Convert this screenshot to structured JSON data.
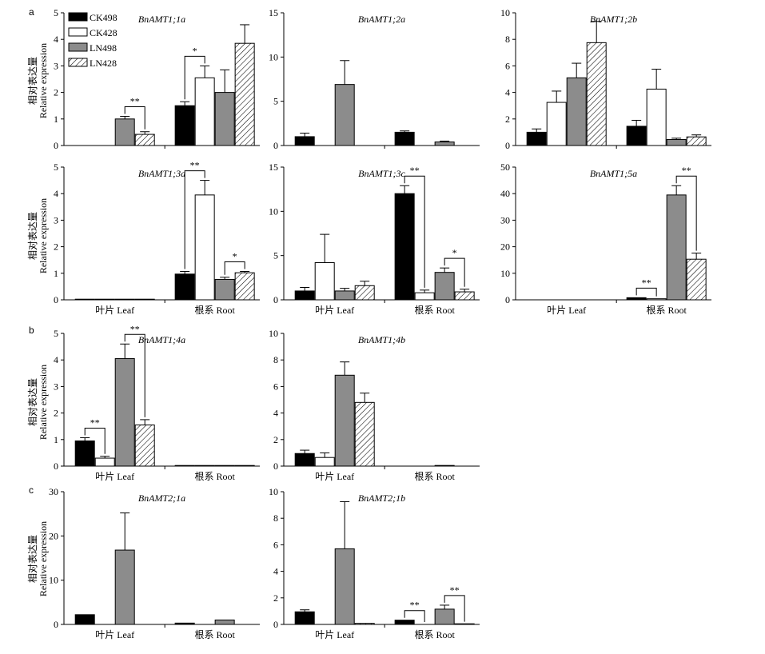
{
  "panel_letters": [
    "a",
    "b",
    "c"
  ],
  "y_label_cn": "相对表达量",
  "y_label_en": "Relative expression",
  "legend": [
    {
      "label": "CK498",
      "fill": "black"
    },
    {
      "label": "CK428",
      "fill": "white"
    },
    {
      "label": "LN498",
      "fill": "gray"
    },
    {
      "label": "LN428",
      "fill": "hatch"
    }
  ],
  "colors": {
    "black": "#000000",
    "white": "#ffffff",
    "gray": "#8c8c8c"
  },
  "chart_data": [
    {
      "type": "bar",
      "title": "BnAMT1;1a",
      "categories": [
        "叶片 Leaf",
        "根系 Root"
      ],
      "show_xticklabels": false,
      "ylim": [
        0,
        5
      ],
      "yticks": [
        0,
        1,
        2,
        3,
        4,
        5
      ],
      "series": [
        {
          "name": "CK498",
          "values": [
            null,
            1.5
          ],
          "errors": [
            null,
            0.15
          ]
        },
        {
          "name": "CK428",
          "values": [
            null,
            2.55
          ],
          "errors": [
            null,
            0.45
          ]
        },
        {
          "name": "LN498",
          "values": [
            1.0,
            2.0
          ],
          "errors": [
            0.1,
            0.85
          ]
        },
        {
          "name": "LN428",
          "values": [
            0.42,
            3.85
          ],
          "errors": [
            0.1,
            0.7
          ]
        }
      ],
      "sig": [
        {
          "label": "**",
          "group": 0,
          "bars": [
            2,
            3
          ]
        },
        {
          "label": "*",
          "group": 1,
          "bars": [
            0,
            1
          ]
        }
      ]
    },
    {
      "type": "bar",
      "title": "BnAMT1;2a",
      "categories": [
        "叶片 Leaf",
        "根系 Root"
      ],
      "show_xticklabels": false,
      "ylim": [
        0,
        15
      ],
      "yticks": [
        0,
        5,
        10,
        15
      ],
      "series": [
        {
          "name": "CK498",
          "values": [
            1.0,
            1.5
          ],
          "errors": [
            0.4,
            0.15
          ]
        },
        {
          "name": "CK428",
          "values": [
            0,
            0
          ],
          "errors": [
            null,
            null
          ]
        },
        {
          "name": "LN498",
          "values": [
            6.9,
            0.4
          ],
          "errors": [
            2.7,
            0.1
          ]
        },
        {
          "name": "LN428",
          "values": [
            0,
            0
          ],
          "errors": [
            null,
            null
          ]
        }
      ],
      "sig": []
    },
    {
      "type": "bar",
      "title": "BnAMT1;2b",
      "categories": [
        "叶片 Leaf",
        "根系 Root"
      ],
      "show_xticklabels": false,
      "ylim": [
        0,
        10
      ],
      "yticks": [
        0,
        2,
        4,
        6,
        8,
        10
      ],
      "series": [
        {
          "name": "CK498",
          "values": [
            1.0,
            1.45
          ],
          "errors": [
            0.25,
            0.45
          ]
        },
        {
          "name": "CK428",
          "values": [
            3.25,
            4.25
          ],
          "errors": [
            0.85,
            1.5
          ]
        },
        {
          "name": "LN498",
          "values": [
            5.1,
            0.45
          ],
          "errors": [
            1.1,
            0.1
          ]
        },
        {
          "name": "LN428",
          "values": [
            7.75,
            0.65
          ],
          "errors": [
            1.6,
            0.15
          ]
        }
      ],
      "sig": []
    },
    {
      "type": "bar",
      "title": "BnAMT1;3a",
      "categories": [
        "叶片 Leaf",
        "根系 Root"
      ],
      "show_xticklabels": true,
      "ylim": [
        0,
        5
      ],
      "yticks": [
        0,
        1,
        2,
        3,
        4,
        5
      ],
      "series": [
        {
          "name": "CK498",
          "values": [
            0.02,
            0.97
          ],
          "errors": [
            null,
            0.1
          ]
        },
        {
          "name": "CK428",
          "values": [
            0.02,
            3.95
          ],
          "errors": [
            null,
            0.55
          ]
        },
        {
          "name": "LN498",
          "values": [
            0.02,
            0.77
          ],
          "errors": [
            null,
            0.08
          ]
        },
        {
          "name": "LN428",
          "values": [
            0.02,
            1.02
          ],
          "errors": [
            null,
            0.05
          ]
        }
      ],
      "sig": [
        {
          "label": "**",
          "group": 1,
          "bars": [
            0,
            1
          ]
        },
        {
          "label": "*",
          "group": 1,
          "bars": [
            2,
            3
          ]
        }
      ]
    },
    {
      "type": "bar",
      "title": "BnAMT1;3c",
      "categories": [
        "叶片 Leaf",
        "根系 Root"
      ],
      "show_xticklabels": true,
      "ylim": [
        0,
        15
      ],
      "yticks": [
        0,
        5,
        10,
        15
      ],
      "series": [
        {
          "name": "CK498",
          "values": [
            1.0,
            12.0
          ],
          "errors": [
            0.4,
            0.9
          ]
        },
        {
          "name": "CK428",
          "values": [
            4.2,
            0.8
          ],
          "errors": [
            3.2,
            0.3
          ]
        },
        {
          "name": "LN498",
          "values": [
            1.0,
            3.1
          ],
          "errors": [
            0.3,
            0.5
          ]
        },
        {
          "name": "LN428",
          "values": [
            1.6,
            0.9
          ],
          "errors": [
            0.5,
            0.3
          ]
        }
      ],
      "sig": [
        {
          "label": "**",
          "group": 1,
          "bars": [
            0,
            1
          ]
        },
        {
          "label": "*",
          "group": 1,
          "bars": [
            2,
            3
          ]
        }
      ]
    },
    {
      "type": "bar",
      "title": "BnAMT1;5a",
      "categories": [
        "叶片 Leaf",
        "根系 Root"
      ],
      "show_xticklabels": true,
      "ylim": [
        0,
        50
      ],
      "yticks": [
        0,
        10,
        20,
        30,
        40,
        50
      ],
      "series": [
        {
          "name": "CK498",
          "values": [
            null,
            0.8
          ],
          "errors": [
            null,
            null
          ]
        },
        {
          "name": "CK428",
          "values": [
            null,
            0.4
          ],
          "errors": [
            null,
            null
          ]
        },
        {
          "name": "LN498",
          "values": [
            null,
            39.5
          ],
          "errors": [
            null,
            3.5
          ]
        },
        {
          "name": "LN428",
          "values": [
            null,
            15.3
          ],
          "errors": [
            null,
            2.3
          ]
        }
      ],
      "sig": [
        {
          "label": "**",
          "group": 1,
          "bars": [
            0,
            1
          ]
        },
        {
          "label": "**",
          "group": 1,
          "bars": [
            2,
            3
          ]
        }
      ]
    },
    {
      "type": "bar",
      "title": "BnAMT1;4a",
      "categories": [
        "叶片 Leaf",
        "根系 Root"
      ],
      "show_xticklabels": true,
      "ylim": [
        0,
        5
      ],
      "yticks": [
        0,
        1,
        2,
        3,
        4,
        5
      ],
      "series": [
        {
          "name": "CK498",
          "values": [
            0.95,
            0.01
          ],
          "errors": [
            0.12,
            null
          ]
        },
        {
          "name": "CK428",
          "values": [
            0.3,
            0.01
          ],
          "errors": [
            0.07,
            null
          ]
        },
        {
          "name": "LN498",
          "values": [
            4.05,
            0.02
          ],
          "errors": [
            0.55,
            null
          ]
        },
        {
          "name": "LN428",
          "values": [
            1.55,
            0.01
          ],
          "errors": [
            0.2,
            null
          ]
        }
      ],
      "sig": [
        {
          "label": "**",
          "group": 0,
          "bars": [
            0,
            1
          ]
        },
        {
          "label": "**",
          "group": 0,
          "bars": [
            2,
            3
          ]
        }
      ]
    },
    {
      "type": "bar",
      "title": "BnAMT1;4b",
      "categories": [
        "叶片 Leaf",
        "根系 Root"
      ],
      "show_xticklabels": true,
      "ylim": [
        0,
        10
      ],
      "yticks": [
        0,
        2,
        4,
        6,
        8,
        10
      ],
      "series": [
        {
          "name": "CK498",
          "values": [
            0.95,
            0
          ],
          "errors": [
            0.25,
            null
          ]
        },
        {
          "name": "CK428",
          "values": [
            0.65,
            0
          ],
          "errors": [
            0.35,
            null
          ]
        },
        {
          "name": "LN498",
          "values": [
            6.85,
            0.05
          ],
          "errors": [
            1.0,
            null
          ]
        },
        {
          "name": "LN428",
          "values": [
            4.8,
            0
          ],
          "errors": [
            0.7,
            null
          ]
        }
      ],
      "sig": []
    },
    {
      "type": "bar",
      "title": "BnAMT2;1a",
      "categories": [
        "叶片 Leaf",
        "根系 Root"
      ],
      "show_xticklabels": true,
      "ylim": [
        0,
        30
      ],
      "yticks": [
        0,
        10,
        20,
        30
      ],
      "series": [
        {
          "name": "CK498",
          "values": [
            2.2,
            0.3
          ],
          "errors": [
            null,
            null
          ]
        },
        {
          "name": "CK428",
          "values": [
            0,
            0
          ],
          "errors": [
            null,
            null
          ]
        },
        {
          "name": "LN498",
          "values": [
            16.8,
            1.0
          ],
          "errors": [
            8.4,
            null
          ]
        },
        {
          "name": "LN428",
          "values": [
            0,
            0
          ],
          "errors": [
            null,
            null
          ]
        }
      ],
      "sig": []
    },
    {
      "type": "bar",
      "title": "BnAMT2;1b",
      "categories": [
        "叶片 Leaf",
        "根系 Root"
      ],
      "show_xticklabels": true,
      "ylim": [
        0,
        10
      ],
      "yticks": [
        0,
        2,
        4,
        6,
        8,
        10
      ],
      "series": [
        {
          "name": "CK498",
          "values": [
            0.95,
            0.32
          ],
          "errors": [
            0.15,
            null
          ]
        },
        {
          "name": "CK428",
          "values": [
            0,
            0
          ],
          "errors": [
            null,
            null
          ]
        },
        {
          "name": "LN498",
          "values": [
            5.7,
            1.15
          ],
          "errors": [
            3.55,
            0.3
          ]
        },
        {
          "name": "LN428",
          "values": [
            0.08,
            0.02
          ],
          "errors": [
            null,
            null
          ]
        }
      ],
      "sig": [
        {
          "label": "**",
          "group": 1,
          "bars": [
            0,
            1
          ]
        },
        {
          "label": "**",
          "group": 1,
          "bars": [
            2,
            3
          ]
        }
      ]
    }
  ]
}
